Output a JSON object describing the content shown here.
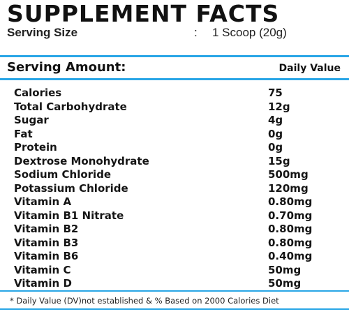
{
  "panel": {
    "title": "SUPPLEMENT FACTS",
    "serving_size": {
      "label": "Serving Size",
      "separator": ":",
      "value": "1 Scoop (20g)"
    },
    "header": {
      "left": "Serving Amount:",
      "right": "Daily Value"
    },
    "nutrients": [
      {
        "name": "Calories",
        "amount": "75"
      },
      {
        "name": "Total Carbohydrate",
        "amount": "12g"
      },
      {
        "name": "Sugar",
        "amount": "4g"
      },
      {
        "name": "Fat",
        "amount": "0g"
      },
      {
        "name": "Protein",
        "amount": "0g"
      },
      {
        "name": "Dextrose Monohydrate",
        "amount": "15g"
      },
      {
        "name": "Sodium Chloride",
        "amount": "500mg"
      },
      {
        "name": "Potassium Chloride",
        "amount": "120mg"
      },
      {
        "name": "Vitamin A",
        "amount": "0.80mg"
      },
      {
        "name": "Vitamin B1 Nitrate",
        "amount": "0.70mg"
      },
      {
        "name": "Vitamin B2",
        "amount": "0.80mg"
      },
      {
        "name": "Vitamin B3",
        "amount": "0.80mg"
      },
      {
        "name": "Vitamin B6",
        "amount": "0.40mg"
      },
      {
        "name": "Vitamin C",
        "amount": "50mg"
      },
      {
        "name": "Vitamin D",
        "amount": "50mg"
      }
    ],
    "footnote": "* Daily Value (DV)not established & % Based on 2000 Calories Diet"
  },
  "colors": {
    "accent_rule": "#2aa6e6",
    "text": "#151515",
    "background": "#ffffff"
  }
}
